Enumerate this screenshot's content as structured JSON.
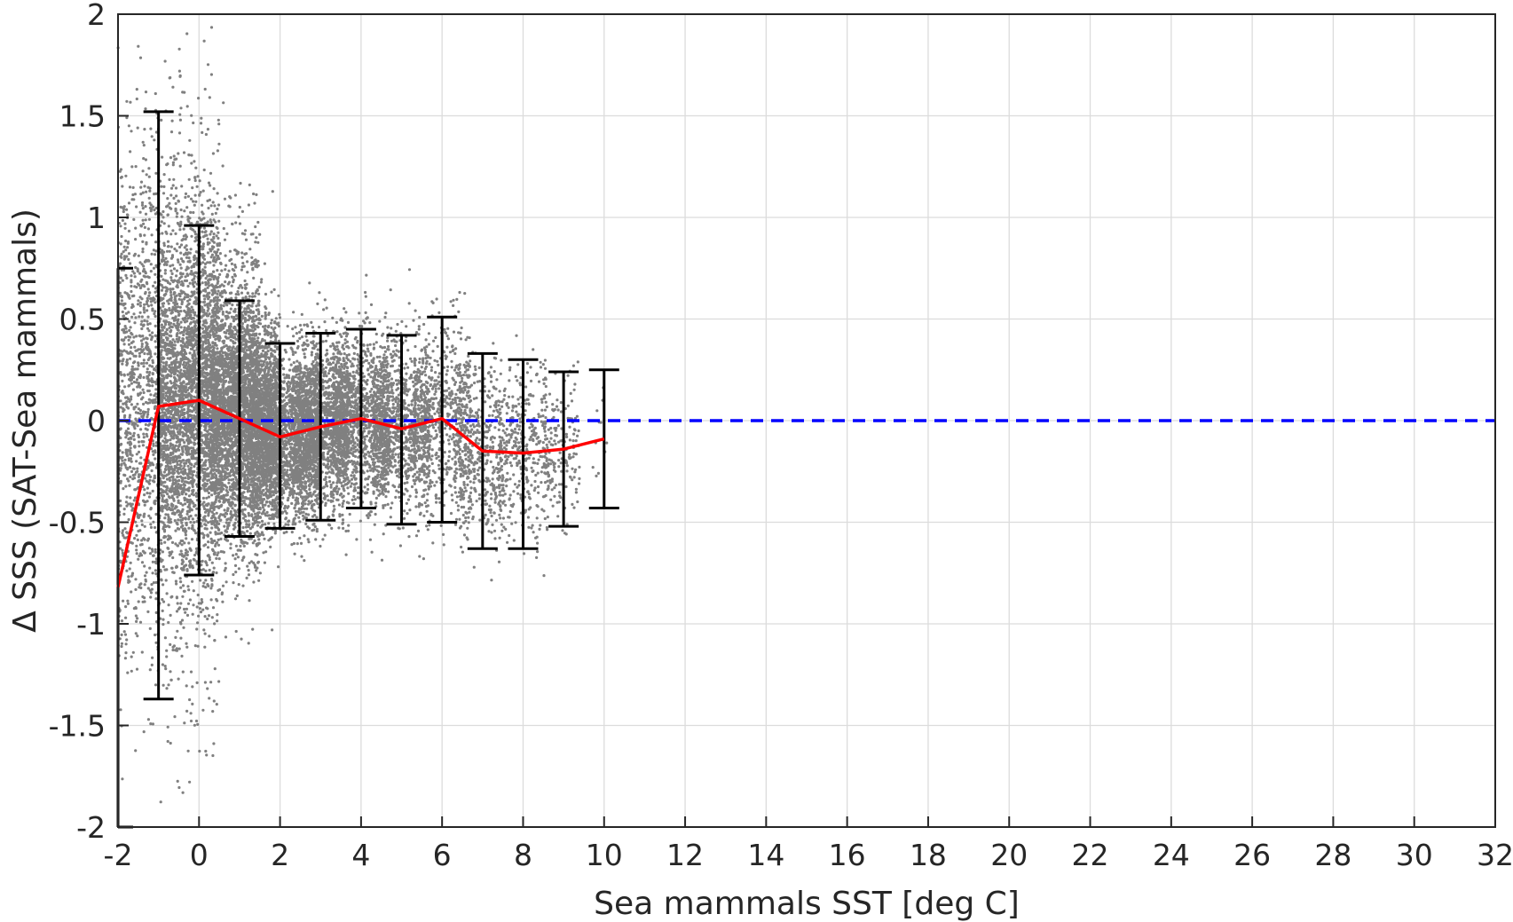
{
  "chart_data": {
    "type": "scatter",
    "title": "",
    "xlabel": "Sea mammals SST [deg C]",
    "ylabel": "Δ SSS (SAT-Sea mammals)",
    "xlim": [
      -2,
      32
    ],
    "ylim": [
      -2,
      2
    ],
    "x_ticks": [
      -2,
      0,
      2,
      4,
      6,
      8,
      10,
      12,
      14,
      16,
      18,
      20,
      22,
      24,
      26,
      28,
      30,
      32
    ],
    "y_ticks": [
      -2,
      -1.5,
      -1,
      -0.5,
      0,
      0.5,
      1,
      1.5,
      2
    ],
    "x_tick_labels": [
      "-2",
      "0",
      "2",
      "4",
      "6",
      "8",
      "10",
      "12",
      "14",
      "16",
      "18",
      "20",
      "22",
      "24",
      "26",
      "28",
      "30",
      "32"
    ],
    "y_tick_labels": [
      "-2",
      "-1.5",
      "-1",
      "-0.5",
      "0",
      "0.5",
      "1",
      "1.5",
      "2"
    ],
    "grid": true,
    "scatter_cloud": {
      "color": "#808080",
      "clusters": [
        {
          "x": -1,
          "y_center": 0.07,
          "y_spread": 0.72,
          "x_min": -2,
          "x_max": 0.5,
          "count": 2600
        },
        {
          "x": 0,
          "y_center": 0.1,
          "y_spread": 0.43,
          "x_min": -1,
          "x_max": 1.5,
          "count": 3400
        },
        {
          "x": 1,
          "y_center": 0.01,
          "y_spread": 0.29,
          "x_min": 0.3,
          "x_max": 2,
          "count": 2600
        },
        {
          "x": 2,
          "y_center": -0.08,
          "y_spread": 0.22,
          "x_min": 1.3,
          "x_max": 3,
          "count": 2200
        },
        {
          "x": 3,
          "y_center": -0.03,
          "y_spread": 0.23,
          "x_min": 2.3,
          "x_max": 3.7,
          "count": 1500
        },
        {
          "x": 4,
          "y_center": 0.01,
          "y_spread": 0.22,
          "x_min": 3.3,
          "x_max": 4.7,
          "count": 1300
        },
        {
          "x": 5,
          "y_center": -0.04,
          "y_spread": 0.23,
          "x_min": 4.3,
          "x_max": 5.7,
          "count": 1000
        },
        {
          "x": 6,
          "y_center": 0.01,
          "y_spread": 0.25,
          "x_min": 5.3,
          "x_max": 6.7,
          "count": 650
        },
        {
          "x": 7,
          "y_center": -0.15,
          "y_spread": 0.24,
          "x_min": 6.3,
          "x_max": 7.5,
          "count": 450
        },
        {
          "x": 8,
          "y_center": -0.16,
          "y_spread": 0.23,
          "x_min": 7.4,
          "x_max": 8.6,
          "count": 400
        },
        {
          "x": 9,
          "y_center": -0.14,
          "y_spread": 0.19,
          "x_min": 8.5,
          "x_max": 9.4,
          "count": 180
        },
        {
          "x": 10,
          "y_center": -0.09,
          "y_spread": 0.17,
          "x_min": 9.7,
          "x_max": 10.1,
          "count": 12
        }
      ]
    },
    "series": [
      {
        "type": "line",
        "color": "#ff0000",
        "x": [
          -2,
          -1,
          0,
          1,
          2,
          3,
          4,
          5,
          6,
          7,
          8,
          9,
          10
        ],
        "y": [
          -0.82,
          0.07,
          0.1,
          0.01,
          -0.08,
          -0.03,
          0.01,
          -0.04,
          0.01,
          -0.15,
          -0.16,
          -0.14,
          -0.09
        ]
      },
      {
        "type": "errorbar",
        "color": "#000000",
        "x": [
          -2,
          -1,
          0,
          1,
          2,
          3,
          4,
          5,
          6,
          7,
          8,
          9,
          10
        ],
        "lower": [
          -2.0,
          -1.37,
          -0.76,
          -0.57,
          -0.53,
          -0.49,
          -0.43,
          -0.51,
          -0.5,
          -0.63,
          -0.63,
          -0.52,
          -0.43
        ],
        "upper": [
          0.75,
          1.52,
          0.96,
          0.59,
          0.38,
          0.43,
          0.45,
          0.42,
          0.51,
          0.33,
          0.3,
          0.24,
          0.25
        ]
      },
      {
        "type": "hline",
        "color": "#0000ff",
        "style": "dashed",
        "y": 0
      }
    ]
  }
}
